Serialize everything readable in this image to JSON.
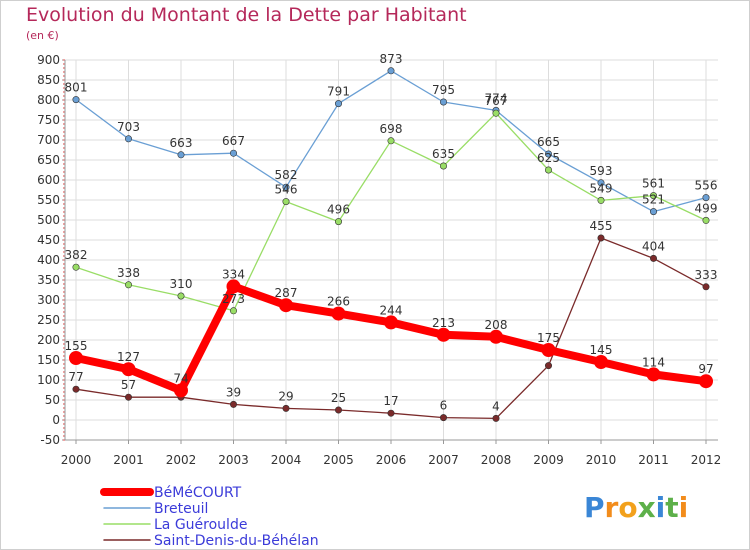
{
  "title": "Evolution du Montant de la Dette par Habitant",
  "subtitle": "(en €)",
  "logo": {
    "letters": [
      "P",
      "r",
      "o",
      "x",
      "i",
      "t",
      "i"
    ],
    "colors": [
      "#3a86d6",
      "#f28c1c",
      "#f2a11c",
      "#5db04a",
      "#3a86d6",
      "#5db04a",
      "#f28c1c"
    ]
  },
  "chart_data": {
    "type": "line",
    "title": "Evolution du Montant de la Dette par Habitant",
    "subtitle": "(en €)",
    "xlabel": "",
    "ylabel": "",
    "x": [
      "2000",
      "2001",
      "2002",
      "2003",
      "2004",
      "2005",
      "2006",
      "2007",
      "2008",
      "2009",
      "2010",
      "2011",
      "2012"
    ],
    "ylim": [
      -50,
      900
    ],
    "yticks": [
      -50,
      0,
      50,
      100,
      150,
      200,
      250,
      300,
      350,
      400,
      450,
      500,
      550,
      600,
      650,
      700,
      750,
      800,
      850,
      900
    ],
    "grid": true,
    "legend_position": "bottom-left",
    "series": [
      {
        "name": "BéMéCOURT",
        "color": "#ff0000",
        "emphasis": true,
        "values": [
          155,
          127,
          74,
          334,
          287,
          266,
          244,
          213,
          208,
          175,
          145,
          114,
          97
        ],
        "labels": [
          "155",
          "127",
          "74",
          "334",
          "287",
          "266",
          "244",
          "213",
          "208",
          "175",
          "145",
          "114",
          "97"
        ]
      },
      {
        "name": "Breteuil",
        "color": "#6a9fd4",
        "emphasis": false,
        "values": [
          801,
          703,
          663,
          667,
          582,
          791,
          873,
          795,
          774,
          665,
          593,
          521,
          556
        ],
        "labels": [
          "801",
          "703",
          "663",
          "667",
          "582",
          "791",
          "873",
          "795",
          "774",
          "665",
          "593",
          "521",
          "556"
        ]
      },
      {
        "name": "La Guéroulde",
        "color": "#99dd66",
        "emphasis": false,
        "values": [
          382,
          338,
          310,
          273,
          546,
          496,
          698,
          635,
          767,
          625,
          549,
          561,
          499
        ],
        "labels": [
          "382",
          "338",
          "310",
          "273",
          "546",
          "496",
          "698",
          "635",
          "767",
          "625",
          "549",
          "561",
          "499"
        ]
      },
      {
        "name": "Saint-Denis-du-Béhélan",
        "color": "#7a2a2a",
        "emphasis": false,
        "values": [
          77,
          57,
          57,
          39,
          29,
          25,
          17,
          6,
          4,
          136,
          455,
          404,
          333
        ],
        "labels": [
          "77",
          "57",
          "",
          "39",
          "29",
          "25",
          "17",
          "6",
          "4",
          "",
          "455",
          "404",
          "333"
        ]
      }
    ]
  }
}
